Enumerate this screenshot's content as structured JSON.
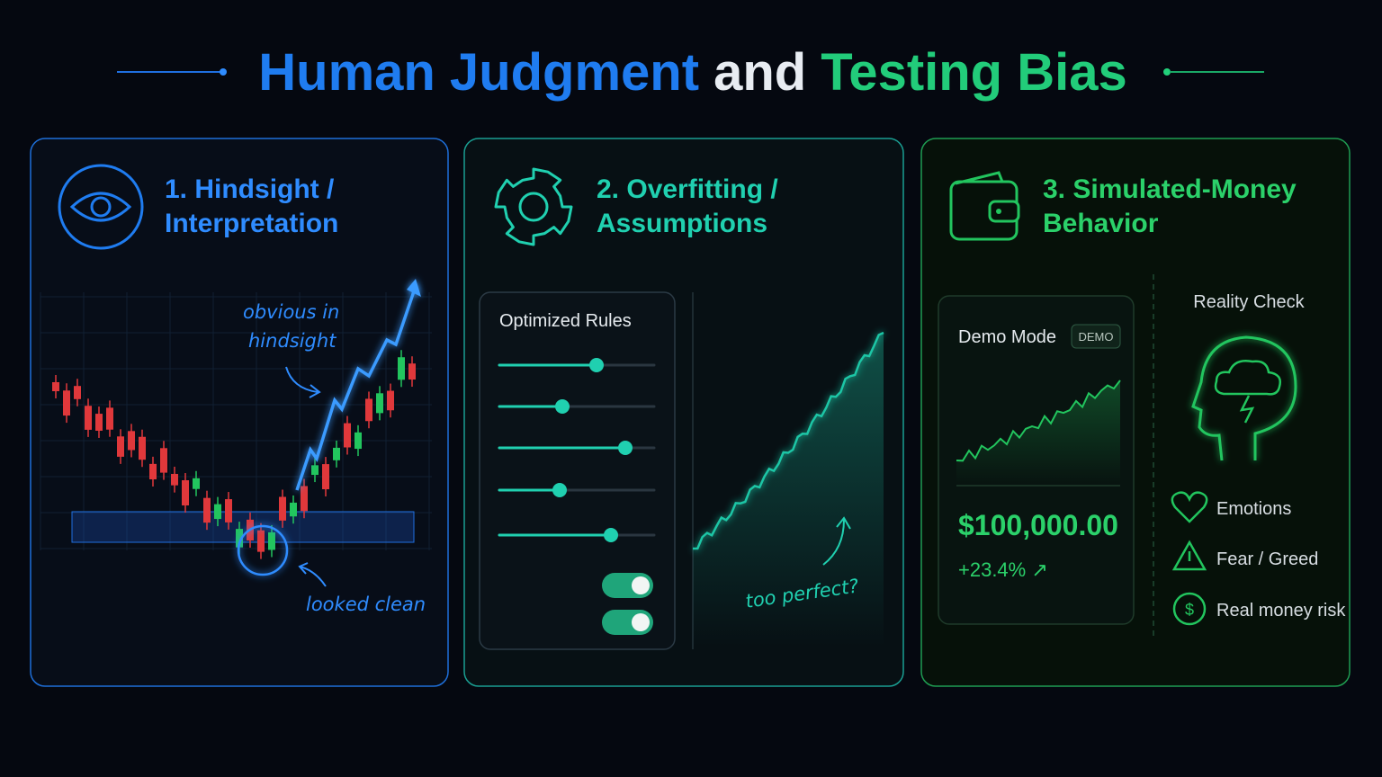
{
  "title": {
    "part1": "Human Judgment",
    "part2": "and",
    "part3": "Testing Bias"
  },
  "panels": [
    {
      "title_lines": [
        "1. Hindsight /",
        "Interpretation"
      ],
      "annotations": {
        "top": [
          "obvious in",
          "hindsight"
        ],
        "bottom": "looked clean"
      }
    },
    {
      "title_lines": [
        "2. Overfitting /",
        "Assumptions"
      ],
      "card_title": "Optimized Rules",
      "annotation": "too perfect?"
    },
    {
      "title_lines": [
        "3. Simulated-Money",
        "Behavior"
      ],
      "demo": {
        "label": "Demo Mode",
        "badge": "DEMO",
        "balance": "$100,000.00",
        "change": "+23.4% ↗"
      },
      "reality": {
        "title": "Reality Check",
        "items": [
          "Emotions",
          "Fear / Greed",
          "Real money risk"
        ]
      }
    }
  ]
}
